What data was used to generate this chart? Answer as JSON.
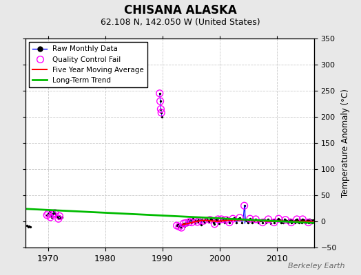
{
  "title": "CHISANA ALASKA",
  "subtitle": "62.108 N, 142.050 W (United States)",
  "ylabel_right": "Temperature Anomaly (°C)",
  "watermark": "Berkeley Earth",
  "xlim": [
    1966.0,
    2016.5
  ],
  "ylim": [
    -50,
    350
  ],
  "yticks": [
    -50,
    0,
    50,
    100,
    150,
    200,
    250,
    300,
    350
  ],
  "xticks": [
    1970,
    1980,
    1990,
    2000,
    2010
  ],
  "background_color": "#e8e8e8",
  "plot_bg_color": "#ffffff",
  "grid_color": "#c8c8c8",
  "segments": [
    {
      "x": [
        1966.3,
        1966.5,
        1966.7,
        1966.9
      ],
      "y": [
        -8,
        -10,
        -9,
        -11
      ]
    },
    {
      "x": [
        1969.8,
        1970.0,
        1970.2,
        1970.4,
        1970.6,
        1970.8,
        1971.0,
        1971.2,
        1971.4,
        1971.6,
        1971.8,
        1972.0,
        1972.2,
        1972.4
      ],
      "y": [
        12,
        15,
        18,
        10,
        8,
        14,
        20,
        16,
        10,
        8,
        5,
        10,
        6,
        8
      ]
    },
    {
      "x": [
        1989.5,
        1989.6,
        1989.7,
        1989.8,
        1989.9
      ],
      "y": [
        245,
        230,
        215,
        208,
        200
      ]
    },
    {
      "x": [
        1992.5,
        1992.7,
        1992.9,
        1993.1,
        1993.3,
        1993.5,
        1993.7,
        1993.9,
        1994.1,
        1994.3,
        1994.5,
        1994.7,
        1994.9,
        1995.1,
        1995.3,
        1995.5,
        1995.7,
        1995.9,
        1996.1,
        1996.3,
        1996.5,
        1996.7,
        1996.9,
        1997.1,
        1997.3,
        1997.5,
        1997.7,
        1997.9,
        1998.1,
        1998.3,
        1998.5,
        1998.7,
        1998.9,
        1999.1,
        1999.3,
        1999.5,
        1999.7,
        1999.9,
        2000.1,
        2000.3,
        2000.5,
        2000.7,
        2000.9,
        2001.1,
        2001.3,
        2001.5,
        2001.7,
        2001.9,
        2002.1,
        2002.3,
        2002.5,
        2002.7,
        2002.9,
        2003.1,
        2003.3,
        2003.5,
        2003.7,
        2003.9,
        2004.1,
        2004.3,
        2004.5,
        2004.7,
        2004.9,
        2005.1,
        2005.3,
        2005.5,
        2005.7,
        2005.9,
        2006.1,
        2006.3,
        2006.5,
        2006.7,
        2006.9,
        2007.1,
        2007.3,
        2007.5,
        2007.7,
        2007.9,
        2008.1,
        2008.3,
        2008.5,
        2008.7,
        2008.9,
        2009.1,
        2009.3,
        2009.5,
        2009.7,
        2009.9,
        2010.1,
        2010.3,
        2010.5,
        2010.7,
        2010.9,
        2011.1,
        2011.3,
        2011.5,
        2011.7,
        2011.9,
        2012.1,
        2012.3,
        2012.5,
        2012.7,
        2012.9,
        2013.1,
        2013.3,
        2013.5,
        2013.7,
        2013.9,
        2014.1,
        2014.3,
        2014.5,
        2014.7,
        2014.9,
        2015.1,
        2015.3,
        2015.5,
        2015.7,
        2015.9,
        2016.1,
        2016.3
      ],
      "y": [
        -8,
        -5,
        -10,
        -6,
        -12,
        -8,
        -4,
        -9,
        -3,
        -7,
        2,
        -1,
        4,
        -2,
        5,
        3,
        -4,
        1,
        -1,
        4,
        2,
        -6,
        3,
        1,
        -3,
        4,
        6,
        2,
        -1,
        3,
        5,
        2,
        -3,
        -5,
        2,
        4,
        2,
        -4,
        1,
        4,
        6,
        2,
        -3,
        3,
        6,
        4,
        -2,
        3,
        2,
        5,
        7,
        3,
        -2,
        2,
        5,
        7,
        4,
        -2,
        4,
        30,
        3,
        1,
        -3,
        2,
        5,
        3,
        -2,
        1,
        2,
        4,
        3,
        -3,
        2,
        1,
        3,
        -2,
        4,
        2,
        -3,
        2,
        4,
        1,
        -4,
        2,
        3,
        -2,
        4,
        1,
        3,
        5,
        2,
        -3,
        2,
        -2,
        4,
        3,
        1,
        -3,
        2,
        4,
        -2,
        3,
        1,
        -3,
        2,
        4,
        1,
        -2,
        3,
        -2,
        4,
        2,
        -3,
        1,
        3,
        -2,
        4,
        2,
        -3,
        2
      ]
    }
  ],
  "qc_fail_x": [
    1969.8,
    1970.0,
    1970.4,
    1970.8,
    1971.2,
    1971.8,
    1972.0,
    1989.5,
    1989.6,
    1989.7,
    1989.8,
    1992.5,
    1992.9,
    1993.3,
    1993.7,
    1994.1,
    1994.7,
    1995.1,
    1996.1,
    1996.5,
    1997.1,
    1998.3,
    1999.1,
    1999.7,
    2000.3,
    2001.1,
    2001.7,
    2002.3,
    2003.5,
    2004.3,
    2005.3,
    2006.3,
    2007.5,
    2008.5,
    2009.5,
    2010.3,
    2011.5,
    2012.5,
    2013.5,
    2014.5,
    2015.5
  ],
  "qc_fail_y": [
    12,
    15,
    8,
    14,
    16,
    5,
    10,
    245,
    230,
    215,
    208,
    -8,
    -10,
    -12,
    -4,
    -3,
    -1,
    -2,
    -1,
    2,
    1,
    3,
    -5,
    4,
    4,
    3,
    -2,
    5,
    7,
    30,
    5,
    4,
    -2,
    4,
    -2,
    5,
    3,
    -2,
    4,
    4,
    -2
  ],
  "spike_x": [
    2004.3
  ],
  "spike_y_base": [
    -3
  ],
  "spike_y_top": [
    30
  ],
  "moving_avg_x": [
    1993.5,
    1994.5,
    1995.5,
    1996.5,
    1997.5,
    1998.5,
    1999.5,
    2000.5,
    2001.5,
    2002.5,
    2003.5,
    2004.5,
    2005.5,
    2006.5,
    2007.5,
    2008.5,
    2009.5,
    2010.5,
    2011.5,
    2012.5,
    2013.5,
    2014.5,
    2015.5,
    2016.3
  ],
  "moving_avg_y": [
    -6,
    -4,
    -1,
    1,
    2,
    1,
    0,
    1,
    2,
    3,
    3,
    3,
    2,
    1,
    1,
    0,
    0,
    1,
    0,
    0,
    0,
    0,
    0,
    -1
  ],
  "trend_x": [
    1966.0,
    2016.5
  ],
  "trend_y": [
    24,
    -3
  ],
  "colors": {
    "raw_line": "#0000ff",
    "raw_dot": "#000000",
    "qc_fail": "#ff00ff",
    "moving_avg": "#ff0000",
    "trend": "#00bb00",
    "spike": "#0000ff"
  },
  "legend_labels": [
    "Raw Monthly Data",
    "Quality Control Fail",
    "Five Year Moving Average",
    "Long-Term Trend"
  ]
}
